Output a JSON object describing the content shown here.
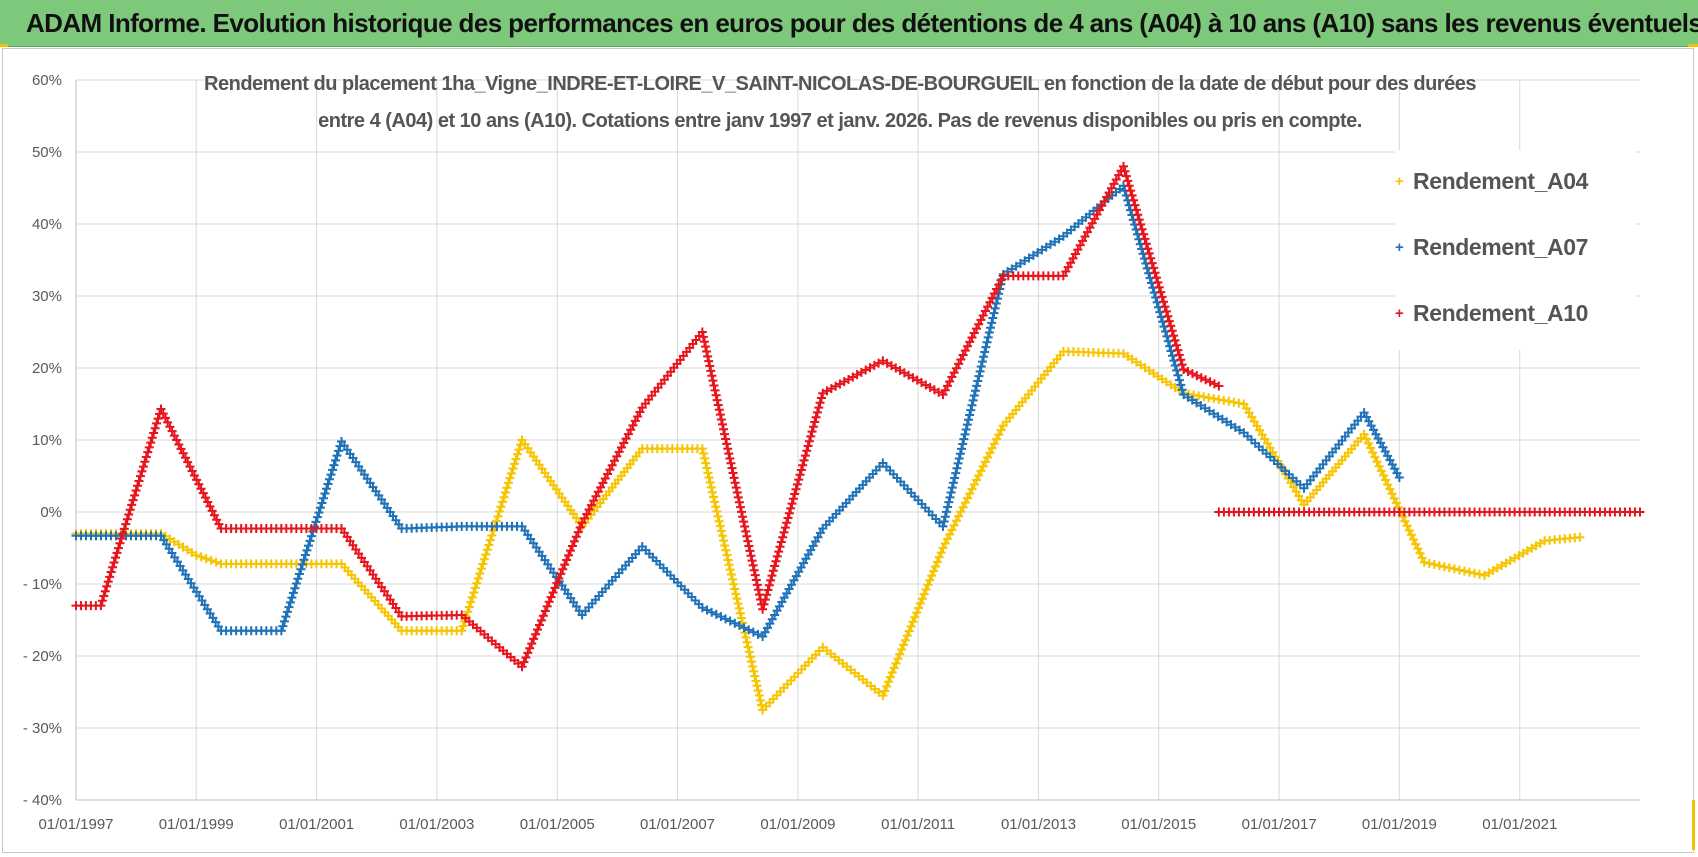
{
  "header": {
    "banner_title": "ADAM Informe. Evolution historique des performances en euros pour des détentions de 4 ans (A04) à 10 ans (A10) sans les revenus éventuels"
  },
  "chart_data": {
    "type": "scatter",
    "title_line1": "Rendement du placement 1ha_Vigne_INDRE-ET-LOIRE_V_SAINT-NICOLAS-DE-BOURGUEIL en fonction de la date de début pour des durées",
    "title_line2": "entre 4 (A04) et 10 ans (A10).  Cotations entre janv 1997 et janv. 2026. Pas de revenus disponibles ou pris en compte.",
    "xlabel": "",
    "ylabel": "",
    "xlim": [
      "01/01/1997",
      "01/01/2023"
    ],
    "ylim": [
      -40,
      60
    ],
    "x_tick_labels": [
      "01/01/1997",
      "01/01/1999",
      "01/01/2001",
      "01/01/2003",
      "01/01/2005",
      "01/01/2007",
      "01/01/2009",
      "01/01/2011",
      "01/01/2013",
      "01/01/2015",
      "01/01/2017",
      "01/01/2019",
      "01/01/2021"
    ],
    "y_tick_values": [
      -40,
      -30,
      -20,
      -10,
      0,
      10,
      20,
      30,
      40,
      50,
      60
    ],
    "y_tick_labels": [
      "- 40%",
      "- 30%",
      "- 20%",
      "- 10%",
      "0%",
      "10%",
      "20%",
      "30%",
      "40%",
      "50%",
      "60%"
    ],
    "grid": true,
    "legend_position": "top-right",
    "marker": "+",
    "series": [
      {
        "name": "Rendement_A04",
        "color": "#f7c400",
        "points": [
          [
            "01/01/1997",
            -3
          ],
          [
            "01/06/1998",
            -3
          ],
          [
            "01/01/1999",
            -6
          ],
          [
            "01/06/1999",
            -7.2
          ],
          [
            "01/06/2001",
            -7.2
          ],
          [
            "01/06/2002",
            -16.5
          ],
          [
            "01/06/2003",
            -16.5
          ],
          [
            "01/06/2004",
            10
          ],
          [
            "01/06/2005",
            -2
          ],
          [
            "01/06/2006",
            8.8
          ],
          [
            "01/06/2007",
            8.8
          ],
          [
            "01/06/2008",
            -27.5
          ],
          [
            "01/06/2009",
            -18.8
          ],
          [
            "01/06/2010",
            -25.5
          ],
          [
            "01/06/2011",
            -5
          ],
          [
            "01/06/2012",
            12
          ],
          [
            "01/06/2013",
            22.3
          ],
          [
            "01/06/2014",
            22
          ],
          [
            "01/06/2015",
            16.5
          ],
          [
            "01/06/2016",
            15
          ],
          [
            "01/06/2017",
            1
          ],
          [
            "01/06/2018",
            10.8
          ],
          [
            "01/06/2019",
            -7
          ],
          [
            "01/06/2020",
            -8.8
          ],
          [
            "01/06/2021",
            -4
          ],
          [
            "01/01/2022",
            -3.5
          ]
        ]
      },
      {
        "name": "Rendement_A07",
        "color": "#1f72b8",
        "points": [
          [
            "01/01/1997",
            -3.3
          ],
          [
            "01/06/1998",
            -3.3
          ],
          [
            "01/06/1999",
            -16.5
          ],
          [
            "01/06/2000",
            -16.5
          ],
          [
            "01/06/2001",
            9.8
          ],
          [
            "01/06/2002",
            -2.3
          ],
          [
            "01/06/2003",
            -2
          ],
          [
            "01/06/2004",
            -2
          ],
          [
            "01/06/2005",
            -14.3
          ],
          [
            "01/06/2006",
            -4.8
          ],
          [
            "01/06/2007",
            -13.3
          ],
          [
            "01/06/2008",
            -17.3
          ],
          [
            "01/06/2009",
            -2.3
          ],
          [
            "01/06/2010",
            6.8
          ],
          [
            "01/06/2011",
            -2
          ],
          [
            "01/06/2012",
            33
          ],
          [
            "01/06/2013",
            38.3
          ],
          [
            "01/06/2014",
            45.3
          ],
          [
            "01/06/2015",
            16.3
          ],
          [
            "01/06/2016",
            11
          ],
          [
            "01/06/2017",
            3.3
          ],
          [
            "01/06/2018",
            13.8
          ],
          [
            "01/01/2019",
            4.8
          ]
        ]
      },
      {
        "name": "Rendement_A10",
        "color": "#e8141c",
        "points": [
          [
            "01/01/1997",
            -13
          ],
          [
            "01/06/1997",
            -13
          ],
          [
            "01/06/1998",
            14.3
          ],
          [
            "01/06/1999",
            -2.3
          ],
          [
            "01/06/2001",
            -2.3
          ],
          [
            "01/06/2002",
            -14.5
          ],
          [
            "01/06/2003",
            -14.3
          ],
          [
            "01/06/2004",
            -21.5
          ],
          [
            "01/06/2005",
            -1.5
          ],
          [
            "01/06/2006",
            14.5
          ],
          [
            "01/06/2007",
            25
          ],
          [
            "01/06/2008",
            -13.5
          ],
          [
            "01/06/2009",
            16.5
          ],
          [
            "01/06/2010",
            21
          ],
          [
            "01/06/2011",
            16.3
          ],
          [
            "01/06/2012",
            32.8
          ],
          [
            "01/06/2013",
            32.8
          ],
          [
            "01/06/2014",
            48
          ],
          [
            "01/06/2015",
            19.8
          ],
          [
            "01/01/2016",
            17.5
          ]
        ],
        "flat_segment": [
          [
            "01/01/2016",
            0
          ],
          [
            "01/01/2023",
            0
          ]
        ]
      }
    ]
  }
}
